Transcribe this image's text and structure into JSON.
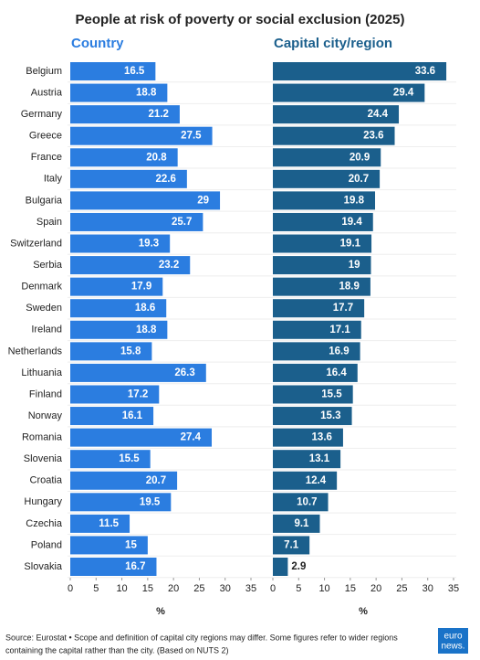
{
  "title": "People at risk of poverty or social exclusion (2025)",
  "source": [
    "Source: Eurostat • Scope and definition of capital city regions may differ. Some figures refer to wider regions",
    "containing the capital rather than the city. (Based on NUTS 2)"
  ],
  "logo": [
    "euro",
    "news."
  ],
  "chart_data": {
    "type": "bar",
    "orientation": "horizontal",
    "categories": [
      "Belgium",
      "Austria",
      "Germany",
      "Greece",
      "France",
      "Italy",
      "Bulgaria",
      "Spain",
      "Switzerland",
      "Serbia",
      "Denmark",
      "Sweden",
      "Ireland",
      "Netherlands",
      "Lithuania",
      "Finland",
      "Norway",
      "Romania",
      "Slovenia",
      "Croatia",
      "Hungary",
      "Czechia",
      "Poland",
      "Slovakia"
    ],
    "series": [
      {
        "name": "Country",
        "color": "#2b7de0",
        "values": [
          16.5,
          18.8,
          21.2,
          27.5,
          20.8,
          22.6,
          29,
          25.7,
          19.3,
          23.2,
          17.9,
          18.6,
          18.8,
          15.8,
          26.3,
          17.2,
          16.1,
          27.4,
          15.5,
          20.7,
          19.5,
          11.5,
          15,
          16.7
        ]
      },
      {
        "name": "Capital city/region",
        "color": "#1b5f8c",
        "values": [
          33.6,
          29.4,
          24.4,
          23.6,
          20.9,
          20.7,
          19.8,
          19.4,
          19.1,
          19,
          18.9,
          17.7,
          17.1,
          16.9,
          16.4,
          15.5,
          15.3,
          13.6,
          13.1,
          12.4,
          10.7,
          9.1,
          7.1,
          2.9
        ]
      }
    ],
    "xlabel": "%",
    "xlim": [
      0,
      35
    ],
    "xticks": [
      0,
      5,
      10,
      15,
      20,
      25,
      30,
      35
    ]
  }
}
